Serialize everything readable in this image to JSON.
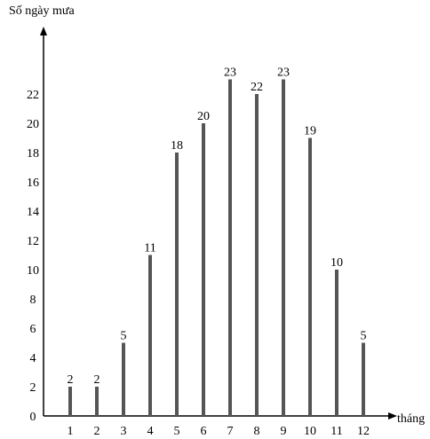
{
  "chart_data": {
    "type": "bar",
    "ylabel": "Số ngày mưa",
    "xlabel": "tháng",
    "categories": [
      "1",
      "2",
      "3",
      "4",
      "5",
      "6",
      "7",
      "8",
      "9",
      "10",
      "11",
      "12"
    ],
    "values": [
      2,
      2,
      5,
      11,
      18,
      20,
      23,
      22,
      23,
      19,
      10,
      5
    ],
    "y_ticks": [
      0,
      2,
      4,
      6,
      8,
      10,
      12,
      14,
      16,
      18,
      20,
      22
    ],
    "ylim": [
      0,
      25
    ],
    "bar_color": "#555555",
    "grid": false,
    "legend": "none"
  }
}
